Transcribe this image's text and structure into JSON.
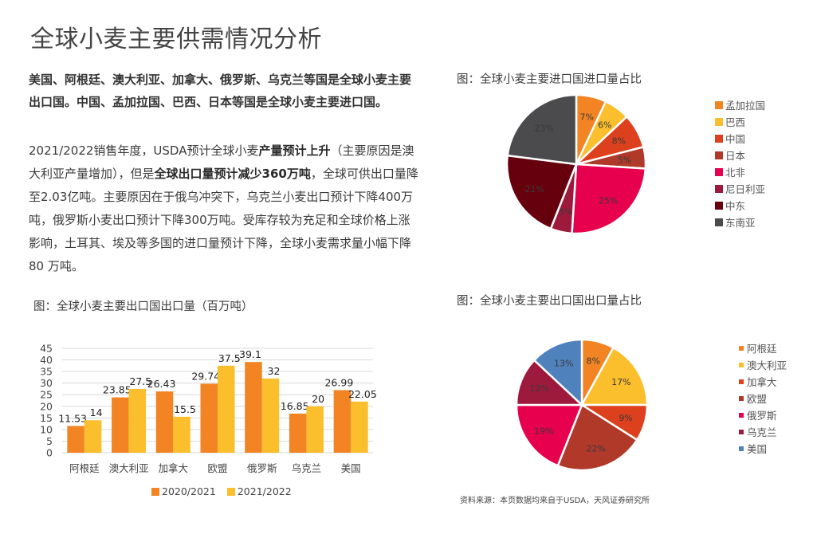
{
  "page": {
    "title": "全球小麦主要供需情况分析",
    "lead": "美国、阿根廷、澳大利亚、加拿大、俄罗斯、乌克兰等国是全球小麦主要出口国。中国、孟加拉国、巴西、日本等国是全球小麦主要进口国。",
    "body": {
      "p1": "2021/2022销售年度，USDA预计全球小麦",
      "b1": "产量预计上升",
      "p2": "（主要原因是澳大利亚产量增加），但是",
      "b2": "全球出口量预计减少360万吨",
      "p3": "，全球可供出口量降至2.03亿吨。主要原因在于俄乌冲突下，乌克兰小麦出口预计下降400万吨，俄罗斯小麦出口预计下降300万吨。受库存较为充足和全球价格上涨影响，土耳其、埃及等多国的进口量预计下降，全球小麦需求量小幅下降80 万吨。"
    },
    "source": "资料来源：本页数据均来自于USDA，天风证券研究所"
  },
  "colors": {
    "orange": "#F28424",
    "yellow": "#FBBE2C",
    "red_orange": "#DD401C",
    "brick": "#B0392A",
    "crimson": "#E6004E",
    "wine": "#9E1A3C",
    "maroon": "#67000D",
    "dark_gray": "#4B4B4D",
    "blue": "#4F81BD"
  },
  "chart_data": [
    {
      "type": "bar",
      "title": "图：全球小麦主要出口国出口量（百万吨）",
      "xlabel": "",
      "ylabel": "",
      "ylim": [
        0,
        45
      ],
      "yticks": [
        0,
        5,
        10,
        15,
        20,
        25,
        30,
        35,
        40,
        45
      ],
      "grid": true,
      "legend_position": "bottom",
      "categories": [
        "阿根廷",
        "澳大利亚",
        "加拿大",
        "欧盟",
        "俄罗斯",
        "乌克兰",
        "美国"
      ],
      "series": [
        {
          "name": "2020/2021",
          "color": "#F28424",
          "values": [
            11.53,
            23.85,
            26.43,
            29.74,
            39.1,
            16.85,
            26.99
          ]
        },
        {
          "name": "2021/2022",
          "color": "#FBBE2C",
          "values": [
            14,
            27.5,
            15.5,
            37.5,
            32,
            20,
            22.05
          ]
        }
      ]
    },
    {
      "type": "pie",
      "title": "图：全球小麦主要进口国进口量占比",
      "legend_position": "right",
      "labels": [
        "孟加拉国",
        "巴西",
        "中国",
        "日本",
        "北非",
        "尼日利亚",
        "中东",
        "东南亚"
      ],
      "values": [
        7,
        6,
        8,
        5,
        25,
        5,
        21,
        23
      ],
      "value_labels": [
        "7%",
        "6%",
        "8%",
        "5%",
        "25%",
        "5%",
        "21%",
        "23%"
      ],
      "colors": [
        "#F28424",
        "#FBBE2C",
        "#DD401C",
        "#B0392A",
        "#E6004E",
        "#9E1A3C",
        "#67000D",
        "#4B4B4D"
      ]
    },
    {
      "type": "pie",
      "title": "图：全球小麦主要出口国出口量占比",
      "legend_position": "right",
      "labels": [
        "阿根廷",
        "澳大利亚",
        "加拿大",
        "欧盟",
        "俄罗斯",
        "乌克兰",
        "美国"
      ],
      "values": [
        8,
        17,
        9,
        22,
        19,
        12,
        13
      ],
      "value_labels": [
        "8%",
        "17%",
        "9%",
        "22%",
        "19%",
        "12%",
        "13%"
      ],
      "colors": [
        "#F28424",
        "#FBBE2C",
        "#DD401C",
        "#B0392A",
        "#E6004E",
        "#9E1A3C",
        "#4F81BD"
      ]
    }
  ]
}
